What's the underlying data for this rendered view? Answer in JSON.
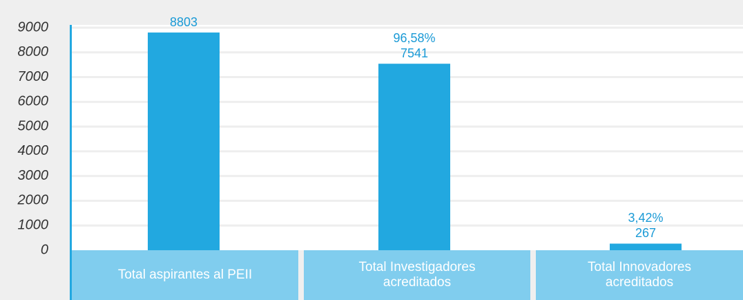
{
  "chart_data": {
    "type": "bar",
    "categories": [
      "Total aspirantes al PEII",
      "Total Investigadores acreditados",
      "Total Innovadores acreditados"
    ],
    "values": [
      8803,
      7541,
      267
    ],
    "percent_labels": [
      null,
      "96,58%",
      "3,42%"
    ],
    "color": "#22a8e0",
    "ylim": [
      0,
      9000
    ],
    "yticks": [
      0,
      1000,
      2000,
      3000,
      4000,
      5000,
      6000,
      7000,
      8000,
      9000
    ],
    "grid": true
  }
}
